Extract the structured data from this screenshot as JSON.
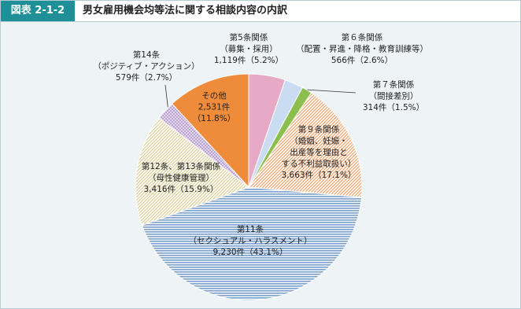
{
  "chart_data": {
    "type": "pie",
    "header_label": "図表 2-1-2",
    "title": "男女雇用機会均等法に関する相談内容の内訳",
    "categories": [
      [
        "第5条関係",
        "（募集・採用）"
      ],
      [
        "第６条関係",
        "（配置・昇進・降格・教育訓練等）"
      ],
      [
        "第７条関係",
        "（間接差別）"
      ],
      [
        "第９条関係",
        "（婚姻、妊娠・",
        "出産等を理由と",
        "する不利益取扱い）"
      ],
      [
        "第11条",
        "（セクシュアル・ハラスメント）"
      ],
      [
        "第12条、第13条関係",
        "（母性健康管理）"
      ],
      [
        "第14条",
        "（ポジティブ・アクション）"
      ],
      [
        "その他"
      ]
    ],
    "values": [
      1119,
      566,
      314,
      3663,
      9230,
      3416,
      579,
      2531
    ],
    "value_labels": [
      "1,119件",
      "566件",
      "314件",
      "3,663件",
      "9,230件",
      "3,416件",
      "579件",
      "2,531件"
    ],
    "percent_labels": [
      "（5.2%）",
      "（2.6%）",
      "（1.5%）",
      "（17.1%）",
      "（43.1%）",
      "（15.9%）",
      "（2.7%）",
      "（11.8%）"
    ],
    "colors": [
      "#e6a9c6",
      "#c9dcf2",
      "#8dbf4e",
      "#ef9a5c",
      "#86a8d0",
      "#d6c98c",
      "#9b7dbb",
      "#ee8c3c"
    ],
    "patterns": [
      "solid",
      "solid",
      "solid",
      "diagonal",
      "horizontal",
      "diagonal",
      "dots",
      "solid"
    ]
  }
}
